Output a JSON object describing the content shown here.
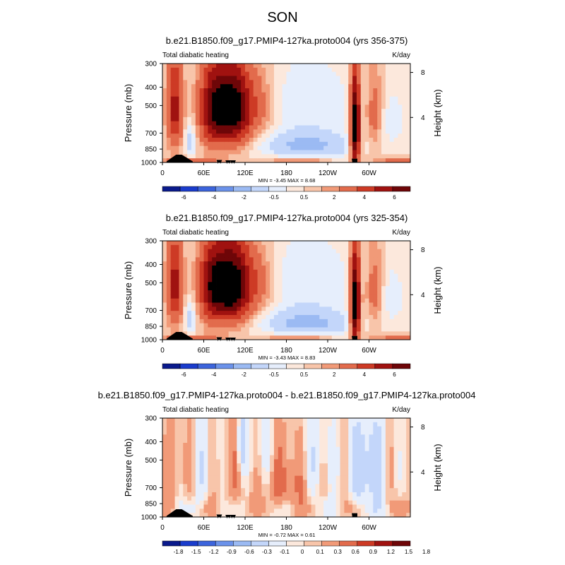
{
  "page": {
    "title": "SON"
  },
  "colors": {
    "ramp7": [
      "#0a1a8c",
      "#1a3ccc",
      "#3c64dc",
      "#6b92ea",
      "#9bbaf3",
      "#c3d6fa",
      "#e6eefc",
      "#fce8dc",
      "#f8c5aa",
      "#f19a78",
      "#e26b4c",
      "#cd3a25",
      "#a01210",
      "#6e0608"
    ],
    "ramp2": [
      "#0a1a8c",
      "#1a3ccc",
      "#3c64dc",
      "#6b92ea",
      "#9bbaf3",
      "#c3d6fa",
      "#e6eefc",
      "#fce8dc",
      "#f8c5aa",
      "#f19a78",
      "#e26b4c",
      "#cd3a25",
      "#a01210",
      "#6e0608"
    ],
    "terrain": "#000000"
  },
  "chart_data": [
    {
      "type": "heatmap",
      "title": "b.e21.B1850.f09_g17.PMIP4-127ka.proto004 (yrs 356-375)",
      "left_label": "Total diabatic heating",
      "right_label": "K/day",
      "ylabel": "Pressure (mb)",
      "y2label": "Height (km)",
      "yticks": [
        300,
        400,
        500,
        700,
        850,
        1000
      ],
      "y2ticks": [
        8,
        4
      ],
      "xticks": [
        "0",
        "60E",
        "120E",
        "180",
        "120W",
        "60W"
      ],
      "xtick_lons": [
        0,
        60,
        120,
        180,
        240,
        300
      ],
      "xlim": [
        0,
        360
      ],
      "ylim": [
        1000,
        300
      ],
      "stats": "MIN = -3.45  MAX =  8.68",
      "scale": 1.0,
      "colorbar_labels": [
        "-6",
        "-4",
        "-2",
        "-0.5",
        "0.5",
        "2",
        "4",
        "6"
      ],
      "colorbar_levels": [
        -7,
        -6,
        -5,
        -4,
        -3,
        -2,
        -1,
        -0.5,
        0,
        0.5,
        1,
        2,
        3,
        4,
        5,
        6,
        7
      ]
    },
    {
      "type": "heatmap",
      "title": "b.e21.B1850.f09_g17.PMIP4-127ka.proto004 (yrs 325-354)",
      "left_label": "Total diabatic heating",
      "right_label": "K/day",
      "ylabel": "Pressure (mb)",
      "y2label": "Height (km)",
      "yticks": [
        300,
        400,
        500,
        700,
        850,
        1000
      ],
      "y2ticks": [
        8,
        4
      ],
      "xticks": [
        "0",
        "60E",
        "120E",
        "180",
        "120W",
        "60W"
      ],
      "xtick_lons": [
        0,
        60,
        120,
        180,
        240,
        300
      ],
      "xlim": [
        0,
        360
      ],
      "ylim": [
        1000,
        300
      ],
      "stats": "MIN = -3.43  MAX =  8.83",
      "scale": 1.0,
      "colorbar_labels": [
        "-6",
        "-4",
        "-2",
        "-0.5",
        "0.5",
        "2",
        "4",
        "6"
      ],
      "colorbar_levels": [
        -7,
        -6,
        -5,
        -4,
        -3,
        -2,
        -1,
        -0.5,
        0,
        0.5,
        1,
        2,
        3,
        4,
        5,
        6,
        7
      ]
    },
    {
      "type": "heatmap",
      "title": "b.e21.B1850.f09_g17.PMIP4-127ka.proto004 - b.e21.B1850.f09_g17.PMIP4-127ka.proto004",
      "left_label": "Total diabatic heating",
      "right_label": "K/day",
      "ylabel": "Pressure (mb)",
      "y2label": "Height (km)",
      "yticks": [
        300,
        400,
        500,
        700,
        850,
        1000
      ],
      "y2ticks": [
        8,
        4
      ],
      "xticks": [
        "0",
        "60E",
        "120E",
        "180",
        "120W",
        "60W"
      ],
      "xtick_lons": [
        0,
        60,
        120,
        180,
        240,
        300
      ],
      "xlim": [
        0,
        360
      ],
      "ylim": [
        1000,
        300
      ],
      "stats": "MIN = -0.72  MAX =  0.61",
      "scale": 0.12,
      "colorbar_labels": [
        "-1.8",
        "-1.5",
        "-1.2",
        "-0.9",
        "-0.6",
        "-0.3",
        "-0.1",
        "0",
        "0.1",
        "0.3",
        "0.6",
        "0.9",
        "1.2",
        "1.5",
        "1.8"
      ],
      "colorbar_levels": [
        -2.1,
        -1.8,
        -1.5,
        -1.2,
        -0.9,
        -0.6,
        -0.3,
        -0.1,
        0,
        0.1,
        0.3,
        0.6,
        0.9,
        1.2,
        1.5,
        1.8,
        2.1
      ]
    }
  ]
}
